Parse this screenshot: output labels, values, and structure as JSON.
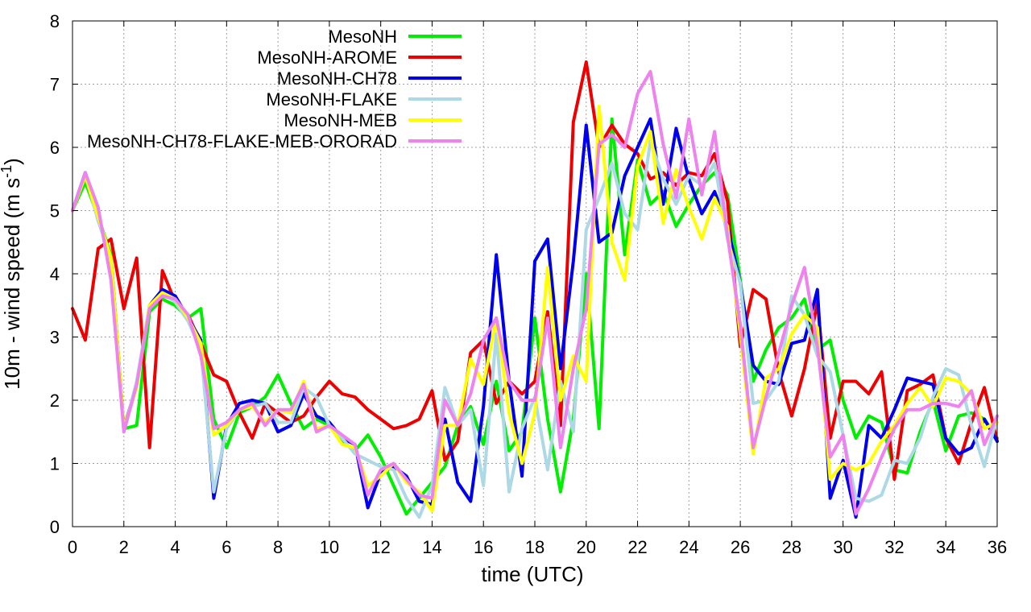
{
  "chart_data": {
    "type": "line",
    "title": "",
    "xlabel": "time (UTC)",
    "ylabel_main": "10m - wind speed  (m s",
    "ylabel_sup": "-1",
    "ylabel_close": ")",
    "xlim": [
      0,
      36
    ],
    "ylim": [
      0,
      8
    ],
    "x_ticks": [
      0,
      2,
      4,
      6,
      8,
      10,
      12,
      14,
      16,
      18,
      20,
      22,
      24,
      26,
      28,
      30,
      32,
      34,
      36
    ],
    "y_ticks": [
      0,
      1,
      2,
      3,
      4,
      5,
      6,
      7,
      8
    ],
    "grid": true,
    "legend_position": "top-left",
    "x": [
      0,
      0.5,
      1,
      1.5,
      2,
      2.5,
      3,
      3.5,
      4,
      4.5,
      5,
      5.5,
      6,
      6.5,
      7,
      7.5,
      8,
      8.5,
      9,
      9.5,
      10,
      10.5,
      11,
      11.5,
      12,
      12.5,
      13,
      13.5,
      14,
      14.5,
      15,
      15.5,
      16,
      16.5,
      17,
      17.5,
      18,
      18.5,
      19,
      19.5,
      20,
      20.5,
      21,
      21.5,
      22,
      22.5,
      23,
      23.5,
      24,
      24.5,
      25,
      25.5,
      26,
      26.5,
      27,
      27.5,
      28,
      28.5,
      29,
      29.5,
      30,
      30.5,
      31,
      31.5,
      32,
      32.5,
      33,
      33.5,
      34,
      34.5,
      35,
      35.5,
      36
    ],
    "series": [
      {
        "name": "MesoNH",
        "color": "#00ee00",
        "values": [
          5.0,
          5.45,
          4.9,
          4.3,
          1.55,
          1.6,
          3.4,
          3.6,
          3.5,
          3.3,
          3.45,
          1.7,
          1.25,
          1.8,
          1.9,
          2.05,
          2.4,
          1.95,
          1.55,
          1.7,
          1.6,
          1.35,
          1.2,
          1.45,
          1.1,
          0.65,
          0.2,
          0.45,
          0.7,
          0.95,
          1.6,
          1.9,
          1.3,
          2.3,
          1.2,
          1.5,
          3.3,
          1.7,
          0.55,
          1.7,
          4.0,
          1.55,
          6.45,
          4.3,
          5.8,
          5.1,
          5.3,
          4.75,
          5.1,
          5.4,
          5.6,
          5.25,
          3.9,
          2.3,
          2.8,
          3.15,
          3.3,
          3.6,
          2.8,
          2.95,
          2.0,
          1.4,
          1.75,
          1.65,
          0.9,
          0.85,
          1.5,
          2.0,
          1.2,
          1.75,
          1.8,
          1.7,
          1.4
        ]
      },
      {
        "name": "MesoNH-AROME",
        "color": "#ee0000",
        "values": [
          3.45,
          2.95,
          4.4,
          4.55,
          3.45,
          4.25,
          1.25,
          4.05,
          3.55,
          3.35,
          2.9,
          2.4,
          2.3,
          1.8,
          1.4,
          1.95,
          1.8,
          1.65,
          1.75,
          2.05,
          2.3,
          2.1,
          2.05,
          1.85,
          1.7,
          1.55,
          1.6,
          1.7,
          2.15,
          1.05,
          1.35,
          2.75,
          2.95,
          1.95,
          2.3,
          2.1,
          2.3,
          3.4,
          1.6,
          6.4,
          7.35,
          6.0,
          6.35,
          6.05,
          5.9,
          5.5,
          5.6,
          5.4,
          5.6,
          5.55,
          5.9,
          5.15,
          2.85,
          3.75,
          3.6,
          2.45,
          1.75,
          2.5,
          3.55,
          1.4,
          2.3,
          2.3,
          2.1,
          2.45,
          0.75,
          2.15,
          2.25,
          2.4,
          1.4,
          1.0,
          1.65,
          2.2,
          1.35
        ]
      },
      {
        "name": "MesoNH-CH78",
        "color": "#0000ee",
        "values": [
          5.0,
          5.6,
          4.85,
          4.25,
          1.55,
          2.25,
          3.5,
          3.75,
          3.65,
          3.3,
          2.95,
          0.45,
          1.6,
          1.95,
          2.0,
          1.95,
          1.5,
          1.6,
          2.1,
          1.75,
          1.65,
          1.4,
          1.3,
          0.3,
          0.85,
          0.95,
          0.8,
          0.4,
          0.35,
          1.7,
          0.7,
          0.4,
          1.9,
          4.3,
          2.3,
          0.8,
          4.2,
          4.55,
          2.5,
          4.2,
          6.35,
          4.5,
          4.65,
          5.55,
          6.0,
          6.45,
          5.1,
          6.3,
          5.5,
          4.95,
          5.3,
          4.75,
          3.85,
          2.55,
          2.3,
          2.25,
          2.9,
          2.95,
          3.75,
          0.45,
          1.05,
          0.15,
          1.6,
          1.4,
          1.85,
          2.35,
          2.3,
          2.25,
          1.4,
          1.15,
          1.25,
          1.7,
          1.35
        ]
      },
      {
        "name": "MesoNH-FLAKE",
        "color": "#add8e6",
        "values": [
          5.0,
          5.55,
          4.85,
          4.25,
          1.5,
          2.3,
          3.5,
          3.7,
          3.55,
          3.25,
          2.8,
          0.55,
          1.55,
          1.85,
          1.9,
          1.95,
          1.65,
          1.65,
          2.2,
          2.05,
          1.6,
          1.4,
          1.15,
          1.05,
          0.95,
          0.9,
          0.45,
          0.15,
          0.65,
          2.2,
          1.6,
          1.85,
          0.65,
          3.05,
          0.55,
          1.55,
          2.05,
          0.9,
          2.3,
          1.5,
          4.7,
          5.2,
          5.75,
          4.95,
          4.7,
          6.1,
          5.5,
          5.1,
          5.55,
          5.4,
          5.75,
          4.55,
          3.85,
          1.95,
          2.0,
          2.3,
          3.65,
          3.35,
          2.7,
          2.45,
          1.45,
          0.45,
          0.4,
          0.5,
          1.05,
          1.0,
          1.4,
          2.05,
          2.5,
          2.4,
          1.6,
          0.95,
          1.75
        ]
      },
      {
        "name": "MesoNH-MEB",
        "color": "#ffff00",
        "values": [
          5.0,
          5.55,
          4.9,
          4.25,
          1.55,
          2.2,
          3.5,
          3.7,
          3.6,
          3.3,
          2.9,
          1.45,
          1.6,
          1.85,
          1.9,
          1.65,
          1.85,
          1.8,
          2.3,
          1.55,
          1.6,
          1.3,
          1.25,
          0.65,
          0.8,
          1.0,
          0.7,
          0.55,
          0.25,
          1.6,
          1.6,
          2.65,
          2.25,
          3.3,
          1.8,
          1.0,
          1.8,
          4.1,
          2.0,
          2.7,
          2.3,
          6.65,
          4.5,
          3.9,
          5.7,
          6.25,
          4.8,
          5.65,
          5.05,
          4.55,
          5.2,
          4.75,
          3.05,
          1.15,
          2.35,
          2.5,
          3.05,
          3.35,
          3.15,
          0.75,
          1.0,
          0.9,
          1.0,
          1.35,
          1.6,
          1.95,
          2.2,
          1.9,
          2.35,
          2.3,
          2.1,
          1.55,
          1.65
        ]
      },
      {
        "name": "MesoNH-CH78-FLAKE-MEB-ORORAD",
        "color": "#ee82ee",
        "values": [
          5.0,
          5.6,
          5.05,
          3.9,
          1.5,
          2.25,
          3.45,
          3.65,
          3.6,
          3.35,
          2.7,
          1.55,
          1.65,
          1.85,
          1.95,
          1.6,
          1.85,
          1.85,
          2.25,
          1.5,
          1.6,
          1.45,
          1.3,
          0.5,
          0.9,
          1.0,
          0.75,
          0.5,
          0.45,
          2.0,
          1.6,
          2.1,
          2.95,
          3.3,
          2.3,
          2.0,
          2.0,
          3.3,
          1.25,
          2.5,
          3.45,
          6.05,
          6.2,
          6.0,
          6.85,
          7.2,
          6.05,
          5.2,
          6.45,
          5.25,
          6.25,
          4.6,
          3.2,
          1.25,
          2.05,
          2.75,
          3.5,
          4.1,
          2.85,
          1.1,
          1.45,
          0.2,
          0.6,
          1.1,
          1.55,
          1.85,
          1.85,
          1.95,
          1.95,
          1.9,
          2.15,
          1.3,
          1.75
        ]
      }
    ]
  }
}
